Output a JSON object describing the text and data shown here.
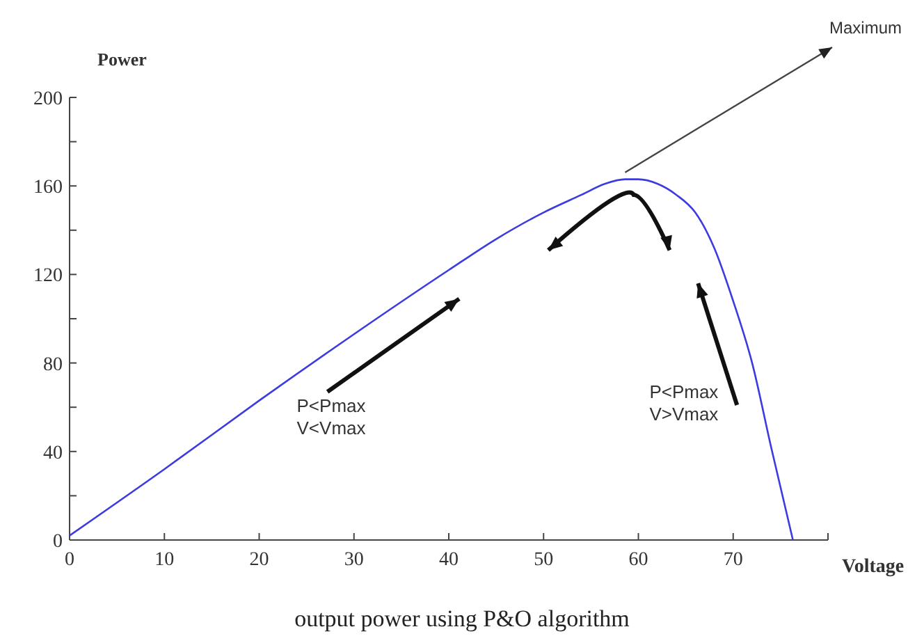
{
  "chart_data": {
    "type": "line",
    "title": "output power using P&O algorithm",
    "xlabel": "Voltage",
    "ylabel": "Power",
    "x": [
      0,
      10,
      20,
      30,
      40,
      45,
      50,
      54,
      56.5,
      58.6,
      60,
      62,
      64,
      66,
      68,
      70,
      72,
      74,
      76.3
    ],
    "series": [
      {
        "color": "#3b3be0",
        "values": [
          2,
          32,
          63,
          93,
          122,
          136,
          148,
          156,
          161,
          163,
          163,
          161,
          156,
          148,
          132,
          108,
          80,
          42,
          0
        ]
      }
    ],
    "xlim": [
      0,
      80
    ],
    "ylim": [
      0,
      200
    ],
    "xticks": [
      0,
      10,
      20,
      30,
      40,
      50,
      60,
      70
    ],
    "yticks": [
      0,
      {
        "value": 20,
        "label": null
      },
      40,
      {
        "value": 60,
        "label": null
      },
      80,
      {
        "value": 100,
        "label": null
      },
      120,
      {
        "value": 140,
        "label": null
      },
      160,
      {
        "value": 180,
        "label": null
      },
      200
    ],
    "grid": false,
    "marker": "none",
    "line_style": "solid",
    "annotations": [
      {
        "text": "Maximum",
        "x": 58.6,
        "y": 163
      },
      "P<Pmax\nV<Vmax",
      "P<Pmax\nV>Vmax"
    ]
  }
}
